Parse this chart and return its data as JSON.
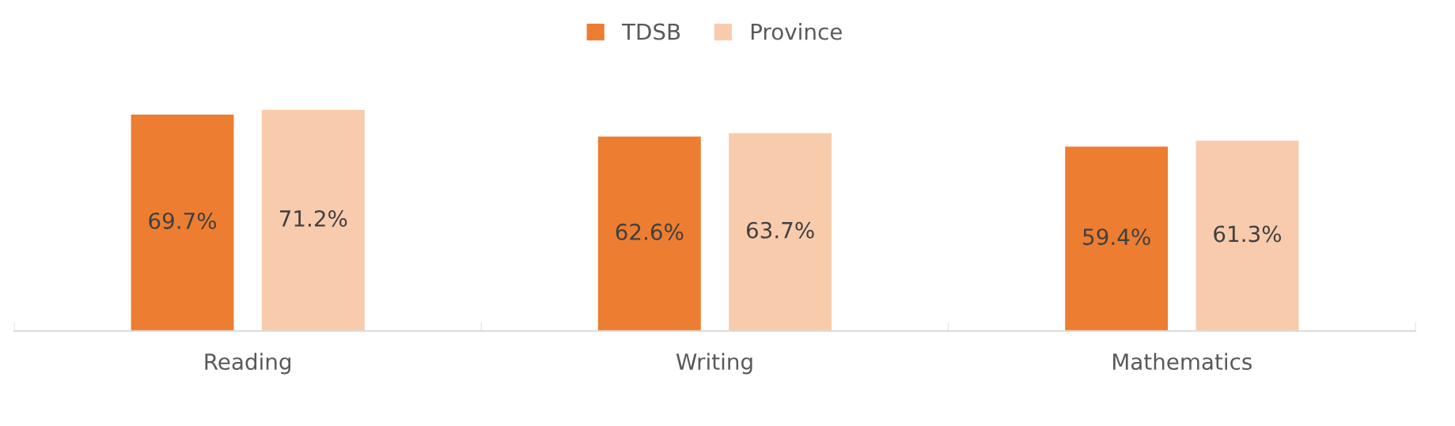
{
  "chart_data": {
    "type": "bar",
    "categories": [
      "Reading",
      "Writing",
      "Mathematics"
    ],
    "series": [
      {
        "name": "TDSB",
        "color": "#ed7d31",
        "values": [
          69.7,
          62.6,
          59.4
        ],
        "value_labels": [
          "69.7%",
          "62.6%",
          "59.4%"
        ]
      },
      {
        "name": "Province",
        "color": "#f8cbad",
        "values": [
          71.2,
          63.7,
          61.3
        ],
        "value_labels": [
          "71.2%",
          "63.7%",
          "61.3%"
        ]
      }
    ],
    "tick_labels": "x",
    "grid": false,
    "legend": "top"
  }
}
